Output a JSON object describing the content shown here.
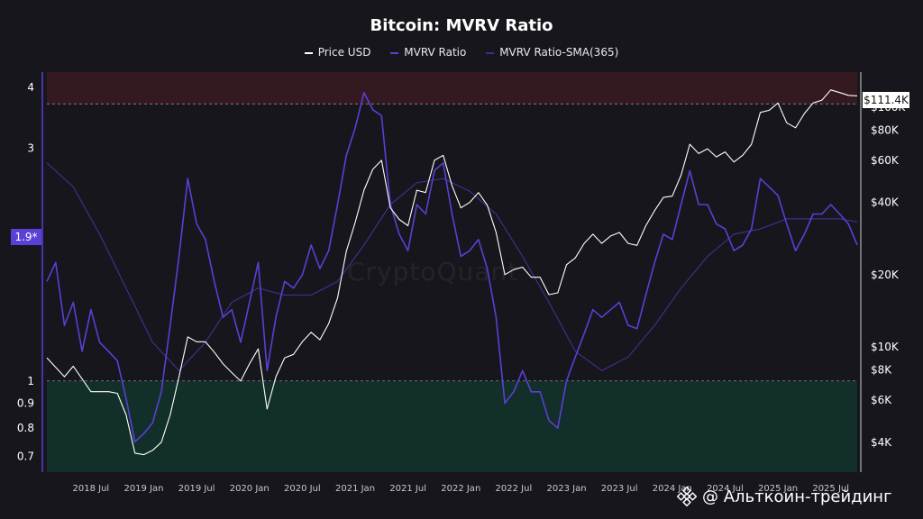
{
  "title": "Bitcoin: MVRV Ratio",
  "legend": [
    {
      "label": "Price USD",
      "color": "#ffffff"
    },
    {
      "label": "MVRV Ratio",
      "color": "#5b3fd6"
    },
    {
      "label": "MVRV Ratio-SMA(365)",
      "color": "#3e2f8a"
    }
  ],
  "watermark": "CryptoQuant",
  "markers": {
    "mvrv_current": "1.9*",
    "price_current": "$111.4K"
  },
  "channel_label": "@ Альткоин-трейдинг",
  "colors": {
    "mvrv": "#5b3fd6",
    "sma": "#3e2f8a",
    "price": "#ffffff",
    "overvalued_zone": "#3a1a22",
    "undervalued_zone": "#12342c"
  },
  "chart_data": {
    "type": "line",
    "title": "Bitcoin: MVRV Ratio",
    "x_ticks": [
      "2018 Jul",
      "2019 Jan",
      "2019 Jul",
      "2020 Jan",
      "2020 Jul",
      "2021 Jan",
      "2021 Jul",
      "2022 Jan",
      "2022 Jul",
      "2023 Jan",
      "2023 Jul",
      "2024 Jan",
      "2024 Jul",
      "2025 Jan",
      "2025 Jul"
    ],
    "y_left": {
      "scale": "log",
      "ticks": [
        "0.7",
        "0.8",
        "0.9",
        "1",
        "3",
        "4"
      ],
      "range": [
        0.65,
        4.3
      ]
    },
    "y_right": {
      "scale": "log",
      "ticks": [
        "$4K",
        "$6K",
        "$8K",
        "$10K",
        "$20K",
        "$40K",
        "$60K",
        "$80K",
        "$100K"
      ],
      "range": [
        3000,
        140000
      ]
    },
    "zones": [
      {
        "name": "overvalued",
        "from": 3.7,
        "to": 4.3
      },
      {
        "name": "undervalued",
        "from": 0.65,
        "to": 1.0
      }
    ],
    "x_range": [
      "2018-02",
      "2025-10"
    ],
    "series": [
      {
        "name": "Price USD",
        "axis": "right",
        "points": [
          [
            "2018-02",
            9000
          ],
          [
            "2018-04",
            7500
          ],
          [
            "2018-05",
            8300
          ],
          [
            "2018-07",
            6500
          ],
          [
            "2018-09",
            6500
          ],
          [
            "2018-10",
            6400
          ],
          [
            "2018-11",
            5200
          ],
          [
            "2018-12",
            3600
          ],
          [
            "2019-01",
            3550
          ],
          [
            "2019-02",
            3700
          ],
          [
            "2019-03",
            4000
          ],
          [
            "2019-04",
            5200
          ],
          [
            "2019-05",
            7500
          ],
          [
            "2019-06",
            11000
          ],
          [
            "2019-07",
            10500
          ],
          [
            "2019-08",
            10500
          ],
          [
            "2019-09",
            9500
          ],
          [
            "2019-10",
            8500
          ],
          [
            "2019-11",
            7800
          ],
          [
            "2019-12",
            7200
          ],
          [
            "2020-01",
            8500
          ],
          [
            "2020-02",
            9800
          ],
          [
            "2020-03",
            5500
          ],
          [
            "2020-04",
            7500
          ],
          [
            "2020-05",
            9000
          ],
          [
            "2020-06",
            9300
          ],
          [
            "2020-07",
            10500
          ],
          [
            "2020-08",
            11500
          ],
          [
            "2020-09",
            10700
          ],
          [
            "2020-10",
            12500
          ],
          [
            "2020-11",
            16000
          ],
          [
            "2020-12",
            25000
          ],
          [
            "2021-01",
            33000
          ],
          [
            "2021-02",
            45000
          ],
          [
            "2021-03",
            55000
          ],
          [
            "2021-04",
            60000
          ],
          [
            "2021-05",
            38000
          ],
          [
            "2021-06",
            34000
          ],
          [
            "2021-07",
            32000
          ],
          [
            "2021-08",
            45000
          ],
          [
            "2021-09",
            44000
          ],
          [
            "2021-10",
            60000
          ],
          [
            "2021-11",
            63000
          ],
          [
            "2021-12",
            47000
          ],
          [
            "2022-01",
            38000
          ],
          [
            "2022-02",
            40000
          ],
          [
            "2022-03",
            44000
          ],
          [
            "2022-04",
            39000
          ],
          [
            "2022-05",
            30000
          ],
          [
            "2022-06",
            20000
          ],
          [
            "2022-07",
            21000
          ],
          [
            "2022-08",
            21500
          ],
          [
            "2022-09",
            19500
          ],
          [
            "2022-10",
            19500
          ],
          [
            "2022-11",
            16500
          ],
          [
            "2022-12",
            16800
          ],
          [
            "2023-01",
            22000
          ],
          [
            "2023-02",
            23500
          ],
          [
            "2023-03",
            27000
          ],
          [
            "2023-04",
            29500
          ],
          [
            "2023-05",
            27000
          ],
          [
            "2023-06",
            29000
          ],
          [
            "2023-07",
            30000
          ],
          [
            "2023-08",
            27000
          ],
          [
            "2023-09",
            26500
          ],
          [
            "2023-10",
            32000
          ],
          [
            "2023-11",
            37000
          ],
          [
            "2023-12",
            42000
          ],
          [
            "2024-01",
            42500
          ],
          [
            "2024-02",
            52000
          ],
          [
            "2024-03",
            70000
          ],
          [
            "2024-04",
            64000
          ],
          [
            "2024-05",
            67000
          ],
          [
            "2024-06",
            62000
          ],
          [
            "2024-07",
            65000
          ],
          [
            "2024-08",
            59000
          ],
          [
            "2024-09",
            63000
          ],
          [
            "2024-10",
            70000
          ],
          [
            "2024-11",
            95000
          ],
          [
            "2024-12",
            97000
          ],
          [
            "2025-01",
            104000
          ],
          [
            "2025-02",
            86000
          ],
          [
            "2025-03",
            82000
          ],
          [
            "2025-04",
            94000
          ],
          [
            "2025-05",
            104000
          ],
          [
            "2025-06",
            107000
          ],
          [
            "2025-07",
            118000
          ],
          [
            "2025-08",
            115000
          ],
          [
            "2025-09",
            112000
          ],
          [
            "2025-10",
            111400
          ]
        ]
      },
      {
        "name": "MVRV Ratio",
        "axis": "left",
        "points": [
          [
            "2018-02",
            1.6
          ],
          [
            "2018-03",
            1.75
          ],
          [
            "2018-04",
            1.3
          ],
          [
            "2018-05",
            1.45
          ],
          [
            "2018-06",
            1.15
          ],
          [
            "2018-07",
            1.4
          ],
          [
            "2018-08",
            1.2
          ],
          [
            "2018-09",
            1.15
          ],
          [
            "2018-10",
            1.1
          ],
          [
            "2018-11",
            0.92
          ],
          [
            "2018-12",
            0.75
          ],
          [
            "2019-01",
            0.78
          ],
          [
            "2019-02",
            0.82
          ],
          [
            "2019-03",
            0.95
          ],
          [
            "2019-04",
            1.3
          ],
          [
            "2019-05",
            1.8
          ],
          [
            "2019-06",
            2.6
          ],
          [
            "2019-07",
            2.1
          ],
          [
            "2019-08",
            1.95
          ],
          [
            "2019-09",
            1.6
          ],
          [
            "2019-10",
            1.35
          ],
          [
            "2019-11",
            1.4
          ],
          [
            "2019-12",
            1.2
          ],
          [
            "2020-01",
            1.45
          ],
          [
            "2020-02",
            1.75
          ],
          [
            "2020-03",
            1.05
          ],
          [
            "2020-04",
            1.35
          ],
          [
            "2020-05",
            1.6
          ],
          [
            "2020-06",
            1.55
          ],
          [
            "2020-07",
            1.65
          ],
          [
            "2020-08",
            1.9
          ],
          [
            "2020-09",
            1.7
          ],
          [
            "2020-10",
            1.85
          ],
          [
            "2020-11",
            2.3
          ],
          [
            "2020-12",
            2.9
          ],
          [
            "2021-01",
            3.3
          ],
          [
            "2021-02",
            3.9
          ],
          [
            "2021-03",
            3.6
          ],
          [
            "2021-04",
            3.5
          ],
          [
            "2021-05",
            2.3
          ],
          [
            "2021-06",
            2.0
          ],
          [
            "2021-07",
            1.85
          ],
          [
            "2021-08",
            2.3
          ],
          [
            "2021-09",
            2.2
          ],
          [
            "2021-10",
            2.7
          ],
          [
            "2021-11",
            2.8
          ],
          [
            "2021-12",
            2.2
          ],
          [
            "2022-01",
            1.8
          ],
          [
            "2022-02",
            1.85
          ],
          [
            "2022-03",
            1.95
          ],
          [
            "2022-04",
            1.7
          ],
          [
            "2022-05",
            1.35
          ],
          [
            "2022-06",
            0.9
          ],
          [
            "2022-07",
            0.95
          ],
          [
            "2022-08",
            1.05
          ],
          [
            "2022-09",
            0.95
          ],
          [
            "2022-10",
            0.95
          ],
          [
            "2022-11",
            0.83
          ],
          [
            "2022-12",
            0.8
          ],
          [
            "2023-01",
            1.0
          ],
          [
            "2023-02",
            1.12
          ],
          [
            "2023-03",
            1.25
          ],
          [
            "2023-04",
            1.4
          ],
          [
            "2023-05",
            1.35
          ],
          [
            "2023-06",
            1.4
          ],
          [
            "2023-07",
            1.45
          ],
          [
            "2023-08",
            1.3
          ],
          [
            "2023-09",
            1.28
          ],
          [
            "2023-10",
            1.5
          ],
          [
            "2023-11",
            1.75
          ],
          [
            "2023-12",
            2.0
          ],
          [
            "2024-01",
            1.95
          ],
          [
            "2024-02",
            2.3
          ],
          [
            "2024-03",
            2.7
          ],
          [
            "2024-04",
            2.3
          ],
          [
            "2024-05",
            2.3
          ],
          [
            "2024-06",
            2.1
          ],
          [
            "2024-07",
            2.05
          ],
          [
            "2024-08",
            1.85
          ],
          [
            "2024-09",
            1.9
          ],
          [
            "2024-10",
            2.05
          ],
          [
            "2024-11",
            2.6
          ],
          [
            "2024-12",
            2.5
          ],
          [
            "2025-01",
            2.4
          ],
          [
            "2025-02",
            2.1
          ],
          [
            "2025-03",
            1.85
          ],
          [
            "2025-04",
            2.0
          ],
          [
            "2025-05",
            2.2
          ],
          [
            "2025-06",
            2.2
          ],
          [
            "2025-07",
            2.3
          ],
          [
            "2025-08",
            2.2
          ],
          [
            "2025-09",
            2.1
          ],
          [
            "2025-10",
            1.9
          ]
        ]
      },
      {
        "name": "MVRV Ratio-SMA(365)",
        "axis": "left",
        "points": [
          [
            "2018-02",
            2.8
          ],
          [
            "2018-05",
            2.5
          ],
          [
            "2018-08",
            2.0
          ],
          [
            "2018-11",
            1.55
          ],
          [
            "2019-02",
            1.2
          ],
          [
            "2019-05",
            1.05
          ],
          [
            "2019-08",
            1.2
          ],
          [
            "2019-11",
            1.45
          ],
          [
            "2020-02",
            1.55
          ],
          [
            "2020-05",
            1.5
          ],
          [
            "2020-08",
            1.5
          ],
          [
            "2020-11",
            1.6
          ],
          [
            "2021-02",
            1.9
          ],
          [
            "2021-05",
            2.3
          ],
          [
            "2021-08",
            2.55
          ],
          [
            "2021-11",
            2.6
          ],
          [
            "2022-02",
            2.45
          ],
          [
            "2022-05",
            2.2
          ],
          [
            "2022-08",
            1.8
          ],
          [
            "2022-11",
            1.45
          ],
          [
            "2023-02",
            1.15
          ],
          [
            "2023-05",
            1.05
          ],
          [
            "2023-08",
            1.12
          ],
          [
            "2023-11",
            1.3
          ],
          [
            "2024-02",
            1.55
          ],
          [
            "2024-05",
            1.8
          ],
          [
            "2024-08",
            2.0
          ],
          [
            "2024-11",
            2.05
          ],
          [
            "2025-02",
            2.15
          ],
          [
            "2025-05",
            2.15
          ],
          [
            "2025-08",
            2.15
          ],
          [
            "2025-10",
            2.12
          ]
        ]
      }
    ]
  }
}
